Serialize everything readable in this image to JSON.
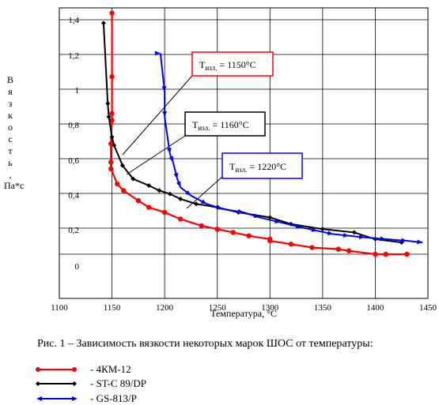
{
  "chart_data": {
    "type": "line",
    "title": "",
    "xlabel": "Температура, °С",
    "ylabel_letters": [
      "В",
      "я",
      "з",
      "к",
      "о",
      "с",
      "т",
      "ь",
      ","
    ],
    "ylabel_unit": "Па*с",
    "xlim": [
      1100,
      1450
    ],
    "x_ticks": [
      "1100",
      "1150",
      "1200",
      "1250",
      "1300",
      "1350",
      "1400",
      "1450"
    ],
    "y_tick_labels": [
      "1,4",
      "1,2",
      "1",
      "0,8",
      "0,6",
      "0,4",
      "0,2",
      "0"
    ],
    "grid": true,
    "series": [
      {
        "name": "4КМ-12",
        "color": "#ff0000",
        "marker": "circle",
        "points": [
          [
            1150,
            1.44
          ],
          [
            1150,
            1.06
          ],
          [
            1150,
            0.84
          ],
          [
            1150,
            0.8
          ],
          [
            1149,
            0.66
          ],
          [
            1149,
            0.55
          ],
          [
            1149,
            0.51
          ],
          [
            1155,
            0.42
          ],
          [
            1161,
            0.38
          ],
          [
            1175,
            0.32
          ],
          [
            1185,
            0.28
          ],
          [
            1200,
            0.25
          ],
          [
            1215,
            0.21
          ],
          [
            1235,
            0.17
          ],
          [
            1250,
            0.15
          ],
          [
            1265,
            0.13
          ],
          [
            1280,
            0.11
          ],
          [
            1300,
            0.09
          ],
          [
            1300,
            0.08
          ],
          [
            1320,
            0.06
          ],
          [
            1340,
            0.04
          ],
          [
            1365,
            0.03
          ],
          [
            1375,
            0.02
          ],
          [
            1400,
            0.0
          ],
          [
            1410,
            0.0
          ],
          [
            1430,
            0.0
          ]
        ]
      },
      {
        "name": "ST-C 89/DP",
        "color": "#000000",
        "marker": "diamond",
        "points": [
          [
            1142,
            1.38
          ],
          [
            1146,
            0.9
          ],
          [
            1147,
            0.82
          ],
          [
            1150,
            0.7
          ],
          [
            1152,
            0.65
          ],
          [
            1160,
            0.53
          ],
          [
            1170,
            0.45
          ],
          [
            1185,
            0.41
          ],
          [
            1195,
            0.38
          ],
          [
            1205,
            0.36
          ],
          [
            1215,
            0.33
          ],
          [
            1230,
            0.3
          ],
          [
            1250,
            0.28
          ],
          [
            1270,
            0.25
          ],
          [
            1300,
            0.22
          ],
          [
            1320,
            0.18
          ],
          [
            1350,
            0.15
          ],
          [
            1380,
            0.13
          ],
          [
            1400,
            0.09
          ],
          [
            1425,
            0.07
          ]
        ]
      },
      {
        "name": "GS-813/P",
        "color": "#0000ff",
        "marker": "arrow",
        "points": [
          [
            1196,
            1.2
          ],
          [
            1200,
            0.97
          ],
          [
            1200,
            0.82
          ],
          [
            1205,
            0.6
          ],
          [
            1208,
            0.55
          ],
          [
            1212,
            0.45
          ],
          [
            1215,
            0.4
          ],
          [
            1225,
            0.35
          ],
          [
            1240,
            0.3
          ],
          [
            1255,
            0.27
          ],
          [
            1275,
            0.25
          ],
          [
            1290,
            0.22
          ],
          [
            1310,
            0.19
          ],
          [
            1330,
            0.16
          ],
          [
            1345,
            0.14
          ],
          [
            1360,
            0.12
          ],
          [
            1375,
            0.11
          ],
          [
            1390,
            0.1
          ],
          [
            1410,
            0.09
          ],
          [
            1430,
            0.08
          ],
          [
            1445,
            0.07
          ]
        ]
      }
    ],
    "annotations": [
      {
        "text_main": "Т",
        "text_sub": "изл.",
        "text_rest": " = 1150°С",
        "color": "#ff0000"
      },
      {
        "text_main": "Т",
        "text_sub": "изл.",
        "text_rest": " = 1160°С",
        "color": "#000000"
      },
      {
        "text_main": "Т",
        "text_sub": "изл.",
        "text_rest": " = 1220°С",
        "color": "#0000ff"
      }
    ]
  },
  "caption": "Рис. 1 – Зависимость вязкости некоторых марок ШОС от температуры:",
  "legend": [
    {
      "label": "-  4КМ-12",
      "color": "#ff0000",
      "marker": "circle"
    },
    {
      "label": "-  ST-C 89/DP",
      "color": "#000000",
      "marker": "diamond"
    },
    {
      "label": "-  GS-813/P",
      "color": "#0000ff",
      "marker": "arrow"
    }
  ]
}
